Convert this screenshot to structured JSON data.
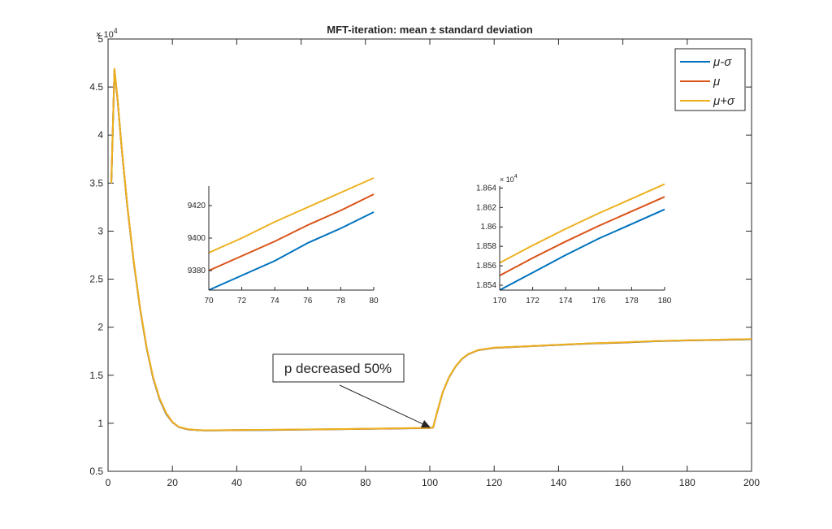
{
  "chart_data": {
    "type": "line",
    "title": "MFT-iteration: mean ± standard deviation",
    "xlim": [
      0,
      200
    ],
    "ylim": [
      5000,
      50000
    ],
    "y_multiplier": "× 10^4",
    "x_ticks": [
      0,
      20,
      40,
      60,
      80,
      100,
      120,
      140,
      160,
      180,
      200
    ],
    "x_tick_labels": [
      "0",
      "20",
      "40",
      "60",
      "80",
      "100",
      "120",
      "140",
      "160",
      "180",
      "200"
    ],
    "y_ticks": [
      5000,
      10000,
      15000,
      20000,
      25000,
      30000,
      35000,
      40000,
      45000,
      50000
    ],
    "y_tick_labels": [
      "0.5",
      "1",
      "1.5",
      "2",
      "2.5",
      "3",
      "3.5",
      "4",
      "4.5",
      "5"
    ],
    "legend": {
      "position": "top-right",
      "entries": [
        "μ-σ",
        "μ",
        "μ+σ"
      ]
    },
    "series": [
      {
        "name": "μ-σ",
        "color": "#0072BD",
        "x": [
          1,
          2,
          3,
          4,
          6,
          8,
          10,
          12,
          14,
          16,
          18,
          20,
          22,
          25,
          28,
          30,
          35,
          40,
          50,
          60,
          70,
          80,
          90,
          100,
          101,
          102,
          104,
          106,
          108,
          110,
          112,
          115,
          120,
          130,
          140,
          150,
          160,
          170,
          180,
          190,
          200
        ],
        "y": [
          35000,
          46800,
          43500,
          39500,
          32500,
          26700,
          21800,
          17800,
          14700,
          12500,
          11000,
          10100,
          9600,
          9350,
          9280,
          9250,
          9260,
          9280,
          9300,
          9330,
          9370,
          9420,
          9460,
          9500,
          9550,
          10800,
          13200,
          14800,
          15900,
          16700,
          17200,
          17600,
          17850,
          18000,
          18150,
          18300,
          18400,
          18535,
          18618,
          18680,
          18740
        ]
      },
      {
        "name": "μ",
        "color": "#D95319",
        "x": [
          1,
          2,
          3,
          4,
          6,
          8,
          10,
          12,
          14,
          16,
          18,
          20,
          22,
          25,
          28,
          30,
          35,
          40,
          50,
          60,
          70,
          80,
          90,
          100,
          101,
          102,
          104,
          106,
          108,
          110,
          112,
          115,
          120,
          130,
          140,
          150,
          160,
          170,
          180,
          190,
          200
        ],
        "y": [
          35000,
          46850,
          43550,
          39550,
          32550,
          26750,
          21850,
          17850,
          14750,
          12550,
          11050,
          10120,
          9610,
          9360,
          9290,
          9260,
          9270,
          9290,
          9310,
          9345,
          9380,
          9427,
          9470,
          9510,
          9560,
          10810,
          13210,
          14810,
          15910,
          16710,
          17210,
          17610,
          17860,
          18010,
          18160,
          18310,
          18410,
          18550,
          18631,
          18690,
          18750
        ]
      },
      {
        "name": "μ+σ",
        "color": "#EDB120",
        "x": [
          1,
          2,
          3,
          4,
          6,
          8,
          10,
          12,
          14,
          16,
          18,
          20,
          22,
          25,
          28,
          30,
          35,
          40,
          50,
          60,
          70,
          80,
          90,
          100,
          101,
          102,
          104,
          106,
          108,
          110,
          112,
          115,
          120,
          130,
          140,
          150,
          160,
          170,
          180,
          190,
          200
        ],
        "y": [
          35000,
          46900,
          43600,
          39600,
          32600,
          26800,
          21900,
          17900,
          14800,
          12600,
          11100,
          10140,
          9620,
          9370,
          9300,
          9270,
          9280,
          9300,
          9320,
          9360,
          9391,
          9435,
          9480,
          9520,
          9570,
          10820,
          13220,
          14820,
          15920,
          16720,
          17220,
          17620,
          17870,
          18020,
          18170,
          18320,
          18420,
          18563,
          18644,
          18700,
          18760
        ]
      }
    ],
    "insets": [
      {
        "xlim": [
          70,
          80
        ],
        "ylim": [
          9368,
          9432
        ],
        "x_ticks": [
          70,
          72,
          74,
          76,
          78,
          80
        ],
        "x_tick_labels": [
          "70",
          "72",
          "74",
          "76",
          "78",
          "80"
        ],
        "y_ticks": [
          9380,
          9400,
          9420
        ],
        "y_tick_labels": [
          "9380",
          "9400",
          "9420"
        ],
        "y_multiplier": "",
        "series": [
          {
            "name": "μ-σ",
            "color": "#0072BD",
            "x": [
              70,
              72,
              74,
              76,
              78,
              80
            ],
            "y": [
              9368,
              9377,
              9386,
              9397,
              9406,
              9416
            ]
          },
          {
            "name": "μ",
            "color": "#D95319",
            "x": [
              70,
              72,
              74,
              76,
              78,
              80
            ],
            "y": [
              9380,
              9389,
              9398,
              9408,
              9417,
              9427
            ]
          },
          {
            "name": "μ+σ",
            "color": "#EDB120",
            "x": [
              70,
              72,
              74,
              76,
              78,
              80
            ],
            "y": [
              9391,
              9400,
              9410,
              9419,
              9428,
              9437
            ]
          }
        ]
      },
      {
        "xlim": [
          170,
          180
        ],
        "ylim": [
          18535,
          18642
        ],
        "x_ticks": [
          170,
          172,
          174,
          176,
          178,
          180
        ],
        "x_tick_labels": [
          "170",
          "172",
          "174",
          "176",
          "178",
          "180"
        ],
        "y_ticks": [
          18540,
          18560,
          18580,
          18600,
          18620,
          18640
        ],
        "y_tick_labels": [
          "1.854",
          "1.856",
          "1.858",
          "1.86",
          "1.862",
          "1.864"
        ],
        "y_multiplier": "× 10^4",
        "series": [
          {
            "name": "μ-σ",
            "color": "#0072BD",
            "x": [
              170,
              172,
              174,
              176,
              178,
              180
            ],
            "y": [
              18535,
              18553,
              18571,
              18588,
              18603,
              18618
            ]
          },
          {
            "name": "μ",
            "color": "#D95319",
            "x": [
              170,
              172,
              174,
              176,
              178,
              180
            ],
            "y": [
              18550,
              18568,
              18585,
              18601,
              18616,
              18631
            ]
          },
          {
            "name": "μ+σ",
            "color": "#EDB120",
            "x": [
              170,
              172,
              174,
              176,
              178,
              180
            ],
            "y": [
              18563,
              18581,
              18598,
              18614,
              18629,
              18644
            ]
          }
        ]
      }
    ],
    "annotation": {
      "text": "p decreased 50%",
      "arrow_to": [
        101,
        9550
      ]
    }
  }
}
